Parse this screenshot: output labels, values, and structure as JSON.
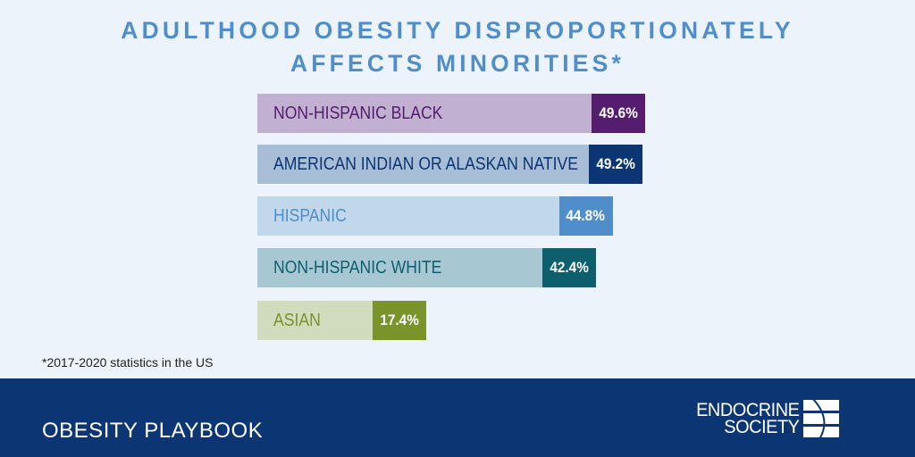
{
  "title": {
    "line1": "ADULTHOOD OBESITY DISPROPORTIONATELY",
    "line2": "AFFECTS MINORITIES*"
  },
  "chart_data": {
    "type": "bar",
    "orientation": "horizontal",
    "title": "ADULTHOOD OBESITY DISPROPORTIONATELY AFFECTS MINORITIES*",
    "categories": [
      "NON-HISPANIC BLACK",
      "AMERICAN INDIAN OR ALASKAN NATIVE",
      "HISPANIC",
      "NON-HISPANIC WHITE",
      "ASIAN"
    ],
    "values": [
      49.6,
      49.2,
      44.8,
      42.4,
      17.4
    ],
    "value_labels": [
      "49.6%",
      "49.2%",
      "44.8%",
      "42.4%",
      "17.4%"
    ],
    "unit": "%",
    "xlabel": "",
    "ylabel": "",
    "grid": false,
    "legend": "none",
    "colors": [
      {
        "light": "#c1b0d0",
        "dark": "#541d6e",
        "text": "#541d6e"
      },
      {
        "light": "#a8bdd6",
        "dark": "#0c3673",
        "text": "#0c3673"
      },
      {
        "light": "#c1d7ec",
        "dark": "#4f8ec9",
        "text": "#4f8ec9"
      },
      {
        "light": "#a7c8d2",
        "dark": "#0e5f6e",
        "text": "#0e5f6e"
      },
      {
        "light": "#d0dcbd",
        "dark": "#78942b",
        "text": "#78942b"
      }
    ]
  },
  "footnote": "*2017-2020 statistics in the US",
  "footer": {
    "title": "OBESITY PLAYBOOK",
    "logo_line1": "ENDOCRINE",
    "logo_line2": "SOCIETY",
    "logo_icon": "endocrine-society-mark"
  }
}
